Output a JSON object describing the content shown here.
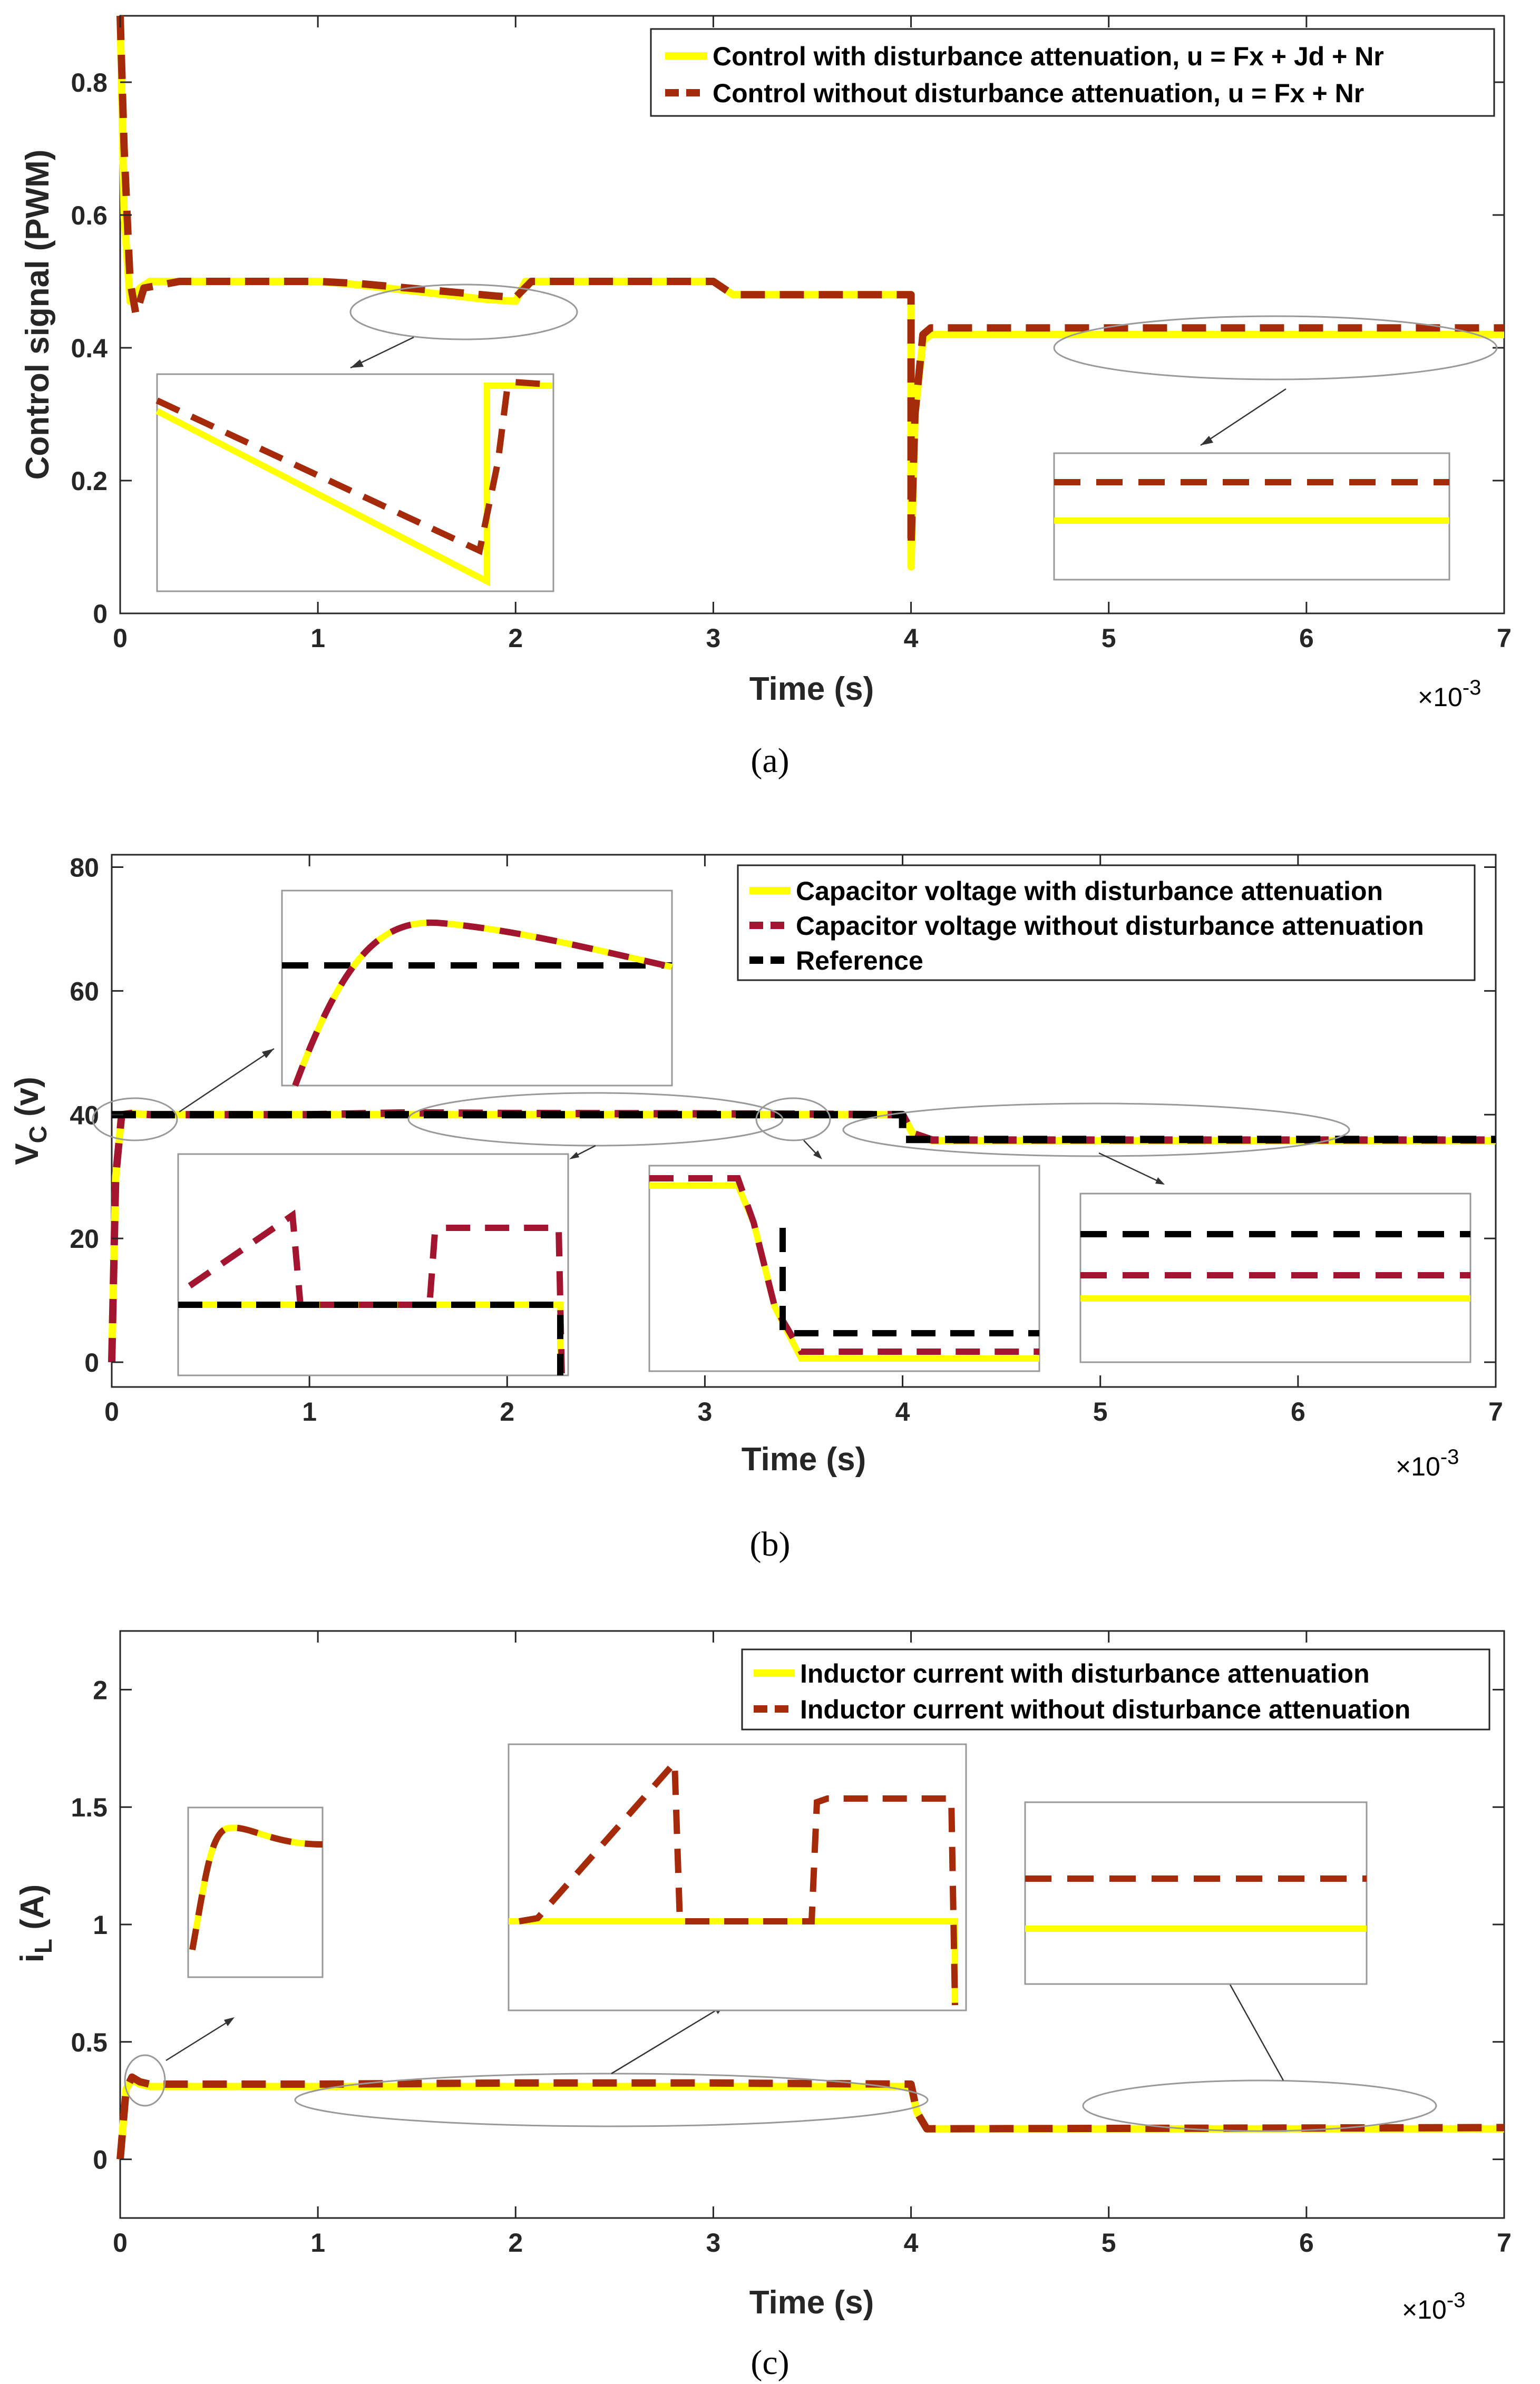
{
  "colors": {
    "yellow": "#FFFF00",
    "brown": "#A52A0A",
    "crimson": "#A2142F",
    "black": "#000000",
    "axis": "#262626"
  },
  "chart_data": [
    {
      "id": "a",
      "type": "line",
      "caption": "(a)",
      "xlabel": "Time (s)",
      "ylabel": "Control signal (PWM)",
      "x_multiplier": "×10-3",
      "xlim": [
        0,
        7
      ],
      "ylim": [
        0,
        0.9
      ],
      "xticks": [
        0,
        1,
        2,
        3,
        4,
        5,
        6,
        7
      ],
      "yticks": [
        0,
        0.2,
        0.4,
        0.6,
        0.8
      ],
      "ytick_labels": [
        "0",
        "0.2",
        "0.4",
        "0.6",
        "0.8"
      ],
      "legend": [
        "Control with disturbance attenuation, u = Fx + Jd + Nr",
        "Control without disturbance attenuation, u = Fx + Nr"
      ],
      "series": [
        {
          "name": "Control with disturbance attenuation, u = Fx + Jd + Nr",
          "style": "solid",
          "color": "yellow",
          "x": [
            0,
            0.02,
            0.05,
            0.1,
            0.15,
            0.3,
            1.0,
            1.2,
            1.85,
            2.0,
            2.05,
            2.2,
            3.0,
            3.1,
            4.0,
            4.0,
            4.02,
            4.06,
            4.1,
            4.2,
            7.0
          ],
          "y": [
            0.9,
            0.6,
            0.47,
            0.49,
            0.5,
            0.5,
            0.5,
            0.495,
            0.473,
            0.47,
            0.5,
            0.5,
            0.5,
            0.48,
            0.48,
            0.07,
            0.3,
            0.41,
            0.42,
            0.42,
            0.42
          ]
        },
        {
          "name": "Control without disturbance attenuation, u = Fx + Nr",
          "style": "dashed",
          "color": "brown",
          "x": [
            0,
            0.02,
            0.05,
            0.08,
            0.12,
            0.3,
            1.0,
            1.2,
            1.9,
            2.0,
            2.08,
            2.2,
            3.0,
            3.1,
            4.0,
            4.0,
            4.02,
            4.06,
            4.1,
            4.2,
            7.0
          ],
          "y": [
            0.9,
            0.7,
            0.5,
            0.45,
            0.49,
            0.5,
            0.5,
            0.497,
            0.478,
            0.476,
            0.5,
            0.5,
            0.5,
            0.48,
            0.48,
            0.1,
            0.3,
            0.42,
            0.43,
            0.43,
            0.43
          ]
        }
      ]
    },
    {
      "id": "b",
      "type": "line",
      "caption": "(b)",
      "xlabel": "Time (s)",
      "ylabel": "VC (v)",
      "ylabel_main": "V",
      "ylabel_sub": "C",
      "ylabel_unit": "(v)",
      "x_multiplier": "×10-3",
      "xlim": [
        0,
        7
      ],
      "ylim": [
        -4,
        82
      ],
      "xticks": [
        0,
        1,
        2,
        3,
        4,
        5,
        6,
        7
      ],
      "yticks": [
        0,
        20,
        40,
        60,
        80
      ],
      "ytick_labels": [
        "0",
        "20",
        "40",
        "60",
        "80"
      ],
      "legend": [
        "Capacitor voltage with disturbance attenuation",
        "Capacitor voltage without disturbance attenuation",
        "Reference"
      ],
      "series": [
        {
          "name": "Capacitor voltage with disturbance attenuation",
          "style": "solid",
          "color": "yellow",
          "x": [
            0,
            0.02,
            0.05,
            0.1,
            0.2,
            1.0,
            3.5,
            4.0,
            4.05,
            4.15,
            7.0
          ],
          "y": [
            0,
            30,
            40,
            40.2,
            40,
            40,
            40,
            40,
            37,
            35.8,
            35.8
          ]
        },
        {
          "name": "Capacitor voltage without disturbance attenuation",
          "style": "dashed",
          "color": "crimson",
          "x": [
            0,
            0.02,
            0.05,
            0.1,
            0.2,
            1.0,
            1.5,
            2.0,
            3.5,
            4.0,
            4.05,
            4.15,
            7.0
          ],
          "y": [
            0,
            30,
            40,
            40.2,
            40,
            40,
            40.3,
            40.2,
            40.1,
            40,
            37,
            35.9,
            35.9
          ]
        },
        {
          "name": "Reference",
          "style": "dashed",
          "color": "black",
          "x": [
            0,
            4.0,
            4.0,
            7.0
          ],
          "y": [
            40,
            40,
            36,
            36
          ]
        }
      ]
    },
    {
      "id": "c",
      "type": "line",
      "caption": "(c)",
      "xlabel": "Time (s)",
      "ylabel": "iL (A)",
      "ylabel_main": "i",
      "ylabel_sub": "L",
      "ylabel_unit": "(A)",
      "x_multiplier": "×10-3",
      "xlim": [
        0,
        7
      ],
      "ylim": [
        -0.25,
        2.25
      ],
      "xticks": [
        0,
        1,
        2,
        3,
        4,
        5,
        6,
        7
      ],
      "yticks": [
        0,
        0.5,
        1,
        1.5,
        2
      ],
      "ytick_labels": [
        "0",
        "0.5",
        "1",
        "1.5",
        "2"
      ],
      "legend": [
        "Inductor current with disturbance attenuation",
        "Inductor current without disturbance attenuation"
      ],
      "series": [
        {
          "name": "Inductor current with disturbance attenuation",
          "style": "solid",
          "color": "yellow",
          "x": [
            0,
            0.03,
            0.06,
            0.1,
            0.15,
            1.0,
            4.0,
            4.03,
            4.08,
            7.0
          ],
          "y": [
            0,
            0.3,
            0.34,
            0.32,
            0.31,
            0.31,
            0.31,
            0.2,
            0.13,
            0.13
          ]
        },
        {
          "name": "Inductor current without disturbance attenuation",
          "style": "dashed",
          "color": "brown",
          "x": [
            0,
            0.03,
            0.06,
            0.1,
            0.15,
            1.0,
            2.0,
            3.0,
            4.0,
            4.03,
            4.08,
            7.0
          ],
          "y": [
            0,
            0.3,
            0.35,
            0.33,
            0.32,
            0.32,
            0.325,
            0.325,
            0.32,
            0.2,
            0.13,
            0.135
          ]
        }
      ]
    }
  ]
}
